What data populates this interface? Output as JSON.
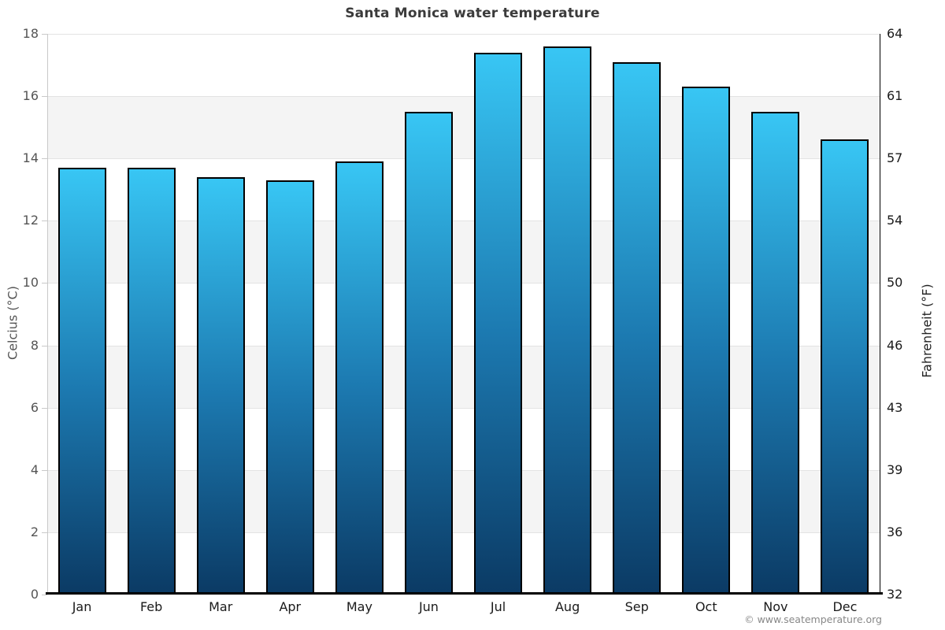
{
  "page": {
    "attribution": "© www.seatemperature.org"
  },
  "chart_data": {
    "type": "bar",
    "title": "Santa Monica water temperature",
    "categories": [
      "Jan",
      "Feb",
      "Mar",
      "Apr",
      "May",
      "Jun",
      "Jul",
      "Aug",
      "Sep",
      "Oct",
      "Nov",
      "Dec"
    ],
    "values": [
      13.7,
      13.7,
      13.4,
      13.3,
      13.9,
      15.5,
      17.4,
      17.6,
      17.1,
      16.3,
      15.5,
      14.6
    ],
    "xlabel": "",
    "ylabel_left": "Celcius (°C)",
    "ylabel_right": "Fahrenheit (°F)",
    "ylim_left": [
      0,
      18
    ],
    "yticks_left": [
      0,
      2,
      4,
      6,
      8,
      10,
      12,
      14,
      16,
      18
    ],
    "yticks_right_labels": [
      "32",
      "36",
      "39",
      "43",
      "46",
      "50",
      "54",
      "57",
      "61",
      "64"
    ],
    "legend": "none",
    "grid": "horizontal-alternating-bands",
    "colors": {
      "bar_gradient_top": "#38c6f4",
      "bar_gradient_mid": "#1c79b0",
      "bar_gradient_bottom": "#0b3a64",
      "bar_border": "#000000",
      "band_gray": "#f4f4f4",
      "band_white": "#ffffff",
      "gridline": "#e3e3e3",
      "left_axis": "#c9c9c9",
      "right_axis": "#000000",
      "baseline": "#000000",
      "title_text": "#3b3b3b",
      "left_tick_text": "#555555",
      "right_tick_text": "#1a1a1a",
      "month_text": "#1a1a1a",
      "attribution_text": "#888888"
    }
  }
}
